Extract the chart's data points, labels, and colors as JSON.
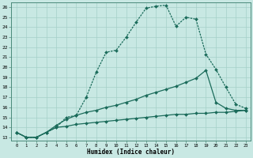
{
  "xlabel": "Humidex (Indice chaleur)",
  "xlim": [
    -0.5,
    23.5
  ],
  "ylim": [
    12.7,
    26.5
  ],
  "xticks": [
    0,
    1,
    2,
    3,
    4,
    5,
    6,
    7,
    8,
    9,
    10,
    11,
    12,
    13,
    14,
    15,
    16,
    17,
    18,
    19,
    20,
    21,
    22,
    23
  ],
  "yticks": [
    13,
    14,
    15,
    16,
    17,
    18,
    19,
    20,
    21,
    22,
    23,
    24,
    25,
    26
  ],
  "background_color": "#c8e8e3",
  "grid_color": "#a5d0c8",
  "line_color": "#1a6b5a",
  "line1_x": [
    0,
    1,
    2,
    3,
    4,
    5,
    6,
    7,
    8,
    9,
    10,
    11,
    12,
    13,
    14,
    15,
    16,
    17,
    18,
    19,
    20,
    21,
    22,
    23
  ],
  "line1_y": [
    13.5,
    13.0,
    13.0,
    13.5,
    14.0,
    15.0,
    15.2,
    17.0,
    19.5,
    21.5,
    21.7,
    23.0,
    24.5,
    25.9,
    26.1,
    26.2,
    24.1,
    25.0,
    24.8,
    21.3,
    19.8,
    18.0,
    16.3,
    15.9
  ],
  "line2_x": [
    0,
    1,
    2,
    3,
    4,
    5,
    6,
    7,
    8,
    9,
    10,
    11,
    12,
    13,
    14,
    15,
    16,
    17,
    18,
    19,
    20,
    21,
    22,
    23
  ],
  "line2_y": [
    13.5,
    13.0,
    13.0,
    13.5,
    14.2,
    14.8,
    15.2,
    15.5,
    15.7,
    16.0,
    16.2,
    16.5,
    16.8,
    17.2,
    17.5,
    17.8,
    18.1,
    18.5,
    18.9,
    19.7,
    16.5,
    15.9,
    15.7,
    15.7
  ],
  "line3_x": [
    0,
    1,
    2,
    3,
    4,
    5,
    6,
    7,
    8,
    9,
    10,
    11,
    12,
    13,
    14,
    15,
    16,
    17,
    18,
    19,
    20,
    21,
    22,
    23
  ],
  "line3_y": [
    13.5,
    13.0,
    13.0,
    13.5,
    14.0,
    14.1,
    14.3,
    14.4,
    14.5,
    14.6,
    14.7,
    14.8,
    14.9,
    15.0,
    15.1,
    15.2,
    15.3,
    15.3,
    15.4,
    15.4,
    15.5,
    15.5,
    15.6,
    15.7
  ]
}
